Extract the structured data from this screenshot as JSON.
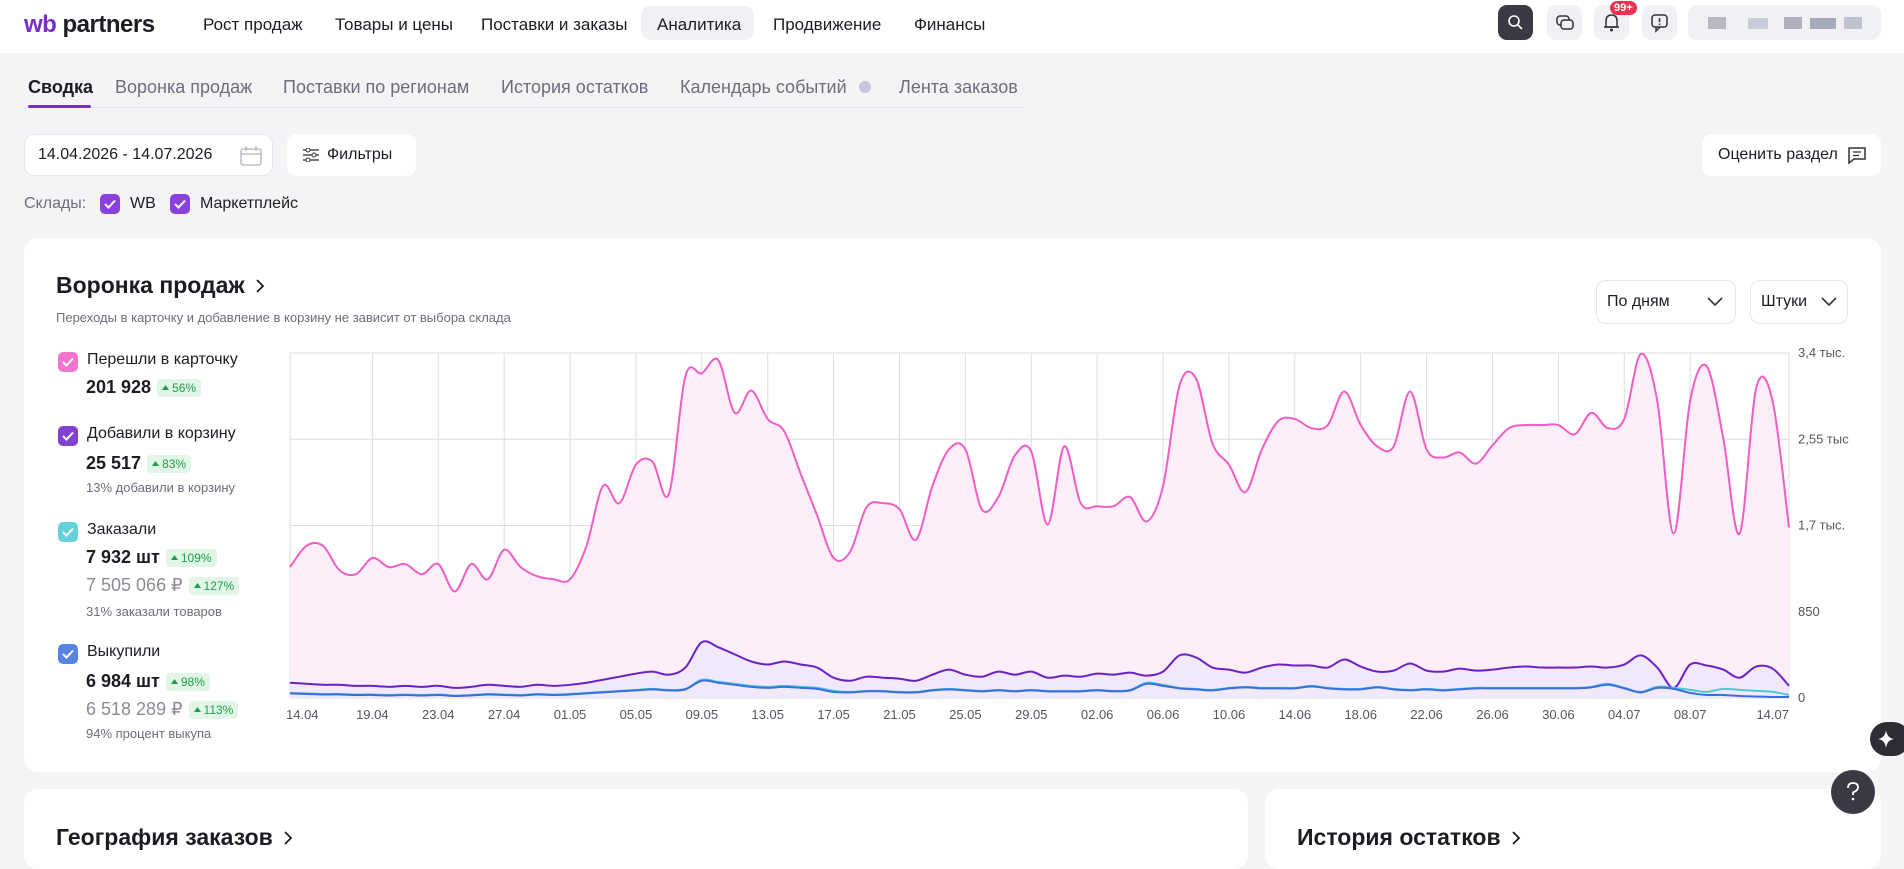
{
  "header": {
    "logo_wb": "wb",
    "logo_partners": "partners",
    "nav": [
      "Рост продаж",
      "Товары и цены",
      "Поставки и заказы",
      "Аналитика",
      "Продвижение",
      "Финансы"
    ],
    "badge": "99+"
  },
  "tabs": [
    "Сводка",
    "Воронка продаж",
    "Поставки по регионам",
    "История остатков",
    "Календарь событий",
    "Лента заказов"
  ],
  "filters": {
    "date_range": "14.04.2026 - 14.07.2026",
    "filters_button": "Фильтры",
    "rate_button": "Оценить раздел",
    "warehouses_label": "Склады:",
    "warehouses": [
      "WB",
      "Маркетплейс"
    ]
  },
  "funnel": {
    "title": "Воронка продаж",
    "subtitle": "Переходы в карточку и добавление в корзину не зависит от выбора склада",
    "period": "По дням",
    "units": "Штуки",
    "metrics": [
      {
        "value": "201 928",
        "change": "56%"
      },
      {
        "value": "25 517",
        "change": "83%",
        "note": "13% добавили в корзину"
      },
      {
        "value": "7 932 шт",
        "change": "109%",
        "value2": "7 505 066 ₽",
        "change2": "127%",
        "note": "31% заказали товаров"
      },
      {
        "value": "6 984 шт",
        "change": "98%",
        "value2": "6 518 289 ₽",
        "change2": "113%",
        "note": "94% процент выкупа"
      }
    ]
  },
  "chart_data": {
    "type": "line",
    "grid": true,
    "categories": [
      "14.04",
      null,
      null,
      null,
      null,
      "19.04",
      null,
      null,
      null,
      "23.04",
      null,
      null,
      null,
      "27.04",
      null,
      null,
      null,
      "01.05",
      null,
      null,
      null,
      "05.05",
      null,
      null,
      null,
      "09.05",
      null,
      null,
      null,
      "13.05",
      null,
      null,
      null,
      "17.05",
      null,
      null,
      null,
      "21.05",
      null,
      null,
      null,
      "25.05",
      null,
      null,
      null,
      "29.05",
      null,
      null,
      null,
      "02.06",
      null,
      null,
      null,
      "06.06",
      null,
      null,
      null,
      "10.06",
      null,
      null,
      null,
      "14.06",
      null,
      null,
      null,
      "18.06",
      null,
      null,
      null,
      "22.06",
      null,
      null,
      null,
      "26.06",
      null,
      null,
      null,
      "30.06",
      null,
      null,
      null,
      "04.07",
      null,
      null,
      null,
      "08.07",
      null,
      null,
      null,
      null,
      null,
      "14.07"
    ],
    "ylim": [
      0,
      3400
    ],
    "yticks": [
      0,
      850,
      {
        "value": 1700,
        "label": "1,7 тыс."
      },
      {
        "value": 2550,
        "label": "2,55 тыс"
      },
      {
        "value": 3400,
        "label": "3,4 тыс."
      }
    ],
    "series": [
      {
        "name": "Перешли в карточку",
        "color": "#ee5ec6",
        "area": "#fdeef9",
        "values": [
          1290,
          1500,
          1500,
          1260,
          1220,
          1380,
          1290,
          1320,
          1220,
          1320,
          1050,
          1320,
          1170,
          1460,
          1290,
          1200,
          1170,
          1170,
          1500,
          2090,
          1920,
          2300,
          2330,
          2010,
          3170,
          3200,
          3330,
          2810,
          3030,
          2750,
          2630,
          2210,
          1800,
          1380,
          1440,
          1880,
          1920,
          1860,
          1560,
          2090,
          2450,
          2450,
          1860,
          1980,
          2390,
          2430,
          1710,
          2480,
          1920,
          1890,
          1890,
          1980,
          1740,
          2090,
          3080,
          3150,
          2510,
          2300,
          2030,
          2450,
          2730,
          2750,
          2660,
          2690,
          3020,
          2690,
          2480,
          2480,
          3020,
          2450,
          2370,
          2420,
          2310,
          2490,
          2660,
          2690,
          2690,
          2690,
          2600,
          2810,
          2660,
          2750,
          3390,
          2930,
          1620,
          2930,
          3270,
          2570,
          1620,
          3050,
          2930,
          1680
        ]
      },
      {
        "name": "Добавили в корзину",
        "color": "#6d20c8",
        "area": "#f1e9fb",
        "values": [
          150,
          140,
          130,
          130,
          120,
          120,
          110,
          120,
          110,
          120,
          100,
          110,
          130,
          120,
          110,
          130,
          120,
          130,
          150,
          180,
          210,
          240,
          260,
          230,
          300,
          550,
          500,
          430,
          360,
          330,
          360,
          330,
          300,
          200,
          170,
          210,
          200,
          190,
          170,
          230,
          280,
          230,
          210,
          260,
          230,
          260,
          200,
          220,
          210,
          240,
          230,
          250,
          220,
          260,
          420,
          400,
          300,
          280,
          250,
          300,
          330,
          320,
          320,
          300,
          380,
          310,
          260,
          270,
          340,
          270,
          260,
          290,
          270,
          280,
          300,
          310,
          300,
          300,
          300,
          310,
          300,
          330,
          420,
          300,
          100,
          330,
          320,
          280,
          200,
          310,
          290,
          120
        ]
      },
      {
        "name": "Заказали",
        "color": "#4cc9d3",
        "values": [
          50,
          45,
          40,
          40,
          35,
          35,
          30,
          35,
          30,
          35,
          25,
          30,
          40,
          35,
          30,
          40,
          35,
          40,
          50,
          60,
          70,
          80,
          90,
          80,
          90,
          180,
          160,
          140,
          120,
          110,
          120,
          110,
          100,
          70,
          60,
          70,
          70,
          60,
          60,
          80,
          90,
          80,
          70,
          80,
          70,
          80,
          70,
          70,
          70,
          80,
          70,
          80,
          150,
          130,
          100,
          90,
          80,
          100,
          110,
          100,
          100,
          100,
          120,
          100,
          90,
          90,
          110,
          90,
          80,
          90,
          80,
          90,
          100,
          100,
          100,
          100,
          100,
          100,
          100,
          110,
          140,
          100,
          60,
          110,
          100,
          80,
          60,
          90,
          80,
          70,
          60,
          30
        ]
      },
      {
        "name": "Выкупили",
        "color": "#3b6de0",
        "values": [
          45,
          40,
          35,
          35,
          30,
          30,
          25,
          30,
          25,
          30,
          20,
          25,
          35,
          30,
          25,
          35,
          30,
          35,
          45,
          55,
          65,
          75,
          85,
          75,
          85,
          170,
          150,
          130,
          110,
          100,
          110,
          100,
          90,
          60,
          55,
          65,
          65,
          55,
          55,
          75,
          85,
          75,
          65,
          75,
          65,
          75,
          65,
          65,
          65,
          75,
          65,
          75,
          140,
          120,
          95,
          85,
          75,
          95,
          105,
          95,
          95,
          95,
          115,
          95,
          85,
          85,
          105,
          85,
          75,
          85,
          75,
          85,
          95,
          95,
          95,
          95,
          95,
          95,
          95,
          105,
          130,
          95,
          55,
          100,
          90,
          50,
          30,
          30,
          20,
          15,
          10,
          10
        ]
      }
    ]
  },
  "bottom": {
    "geography": "География заказов",
    "stock_history": "История остатков"
  }
}
